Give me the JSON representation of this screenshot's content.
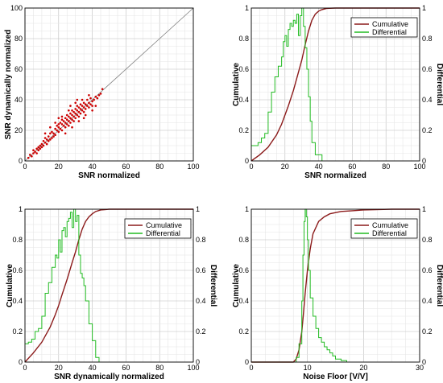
{
  "chart_data": [
    {
      "type": "scatter",
      "xlabel": "SNR normalized",
      "ylabel": "SNR dynamically normalized",
      "xlim": [
        0,
        100
      ],
      "ylim": [
        0,
        100
      ],
      "xticks": [
        "0",
        "20",
        "40",
        "60",
        "80",
        "100"
      ],
      "yticks": [
        "0",
        "20",
        "40",
        "60",
        "80",
        "100"
      ],
      "grid": true,
      "reference_line": {
        "x": [
          0,
          100
        ],
        "y": [
          0,
          100
        ],
        "color": "#808080"
      },
      "series": [
        {
          "color": "#cc0000",
          "points": [
            [
              2,
              2
            ],
            [
              3,
              4
            ],
            [
              4,
              3
            ],
            [
              5,
              5
            ],
            [
              5,
              7
            ],
            [
              6,
              6
            ],
            [
              7,
              8
            ],
            [
              7,
              5
            ],
            [
              8,
              9
            ],
            [
              8,
              7
            ],
            [
              9,
              10
            ],
            [
              9,
              8
            ],
            [
              10,
              11
            ],
            [
              10,
              9
            ],
            [
              11,
              13
            ],
            [
              11,
              10
            ],
            [
              12,
              12
            ],
            [
              12,
              15
            ],
            [
              13,
              14
            ],
            [
              13,
              11
            ],
            [
              14,
              16
            ],
            [
              14,
              13
            ],
            [
              15,
              18
            ],
            [
              15,
              14
            ],
            [
              16,
              15
            ],
            [
              16,
              19
            ],
            [
              17,
              18
            ],
            [
              17,
              16
            ],
            [
              18,
              21
            ],
            [
              18,
              17
            ],
            [
              19,
              20
            ],
            [
              19,
              23
            ],
            [
              20,
              19
            ],
            [
              20,
              24
            ],
            [
              20,
              22
            ],
            [
              21,
              21
            ],
            [
              21,
              25
            ],
            [
              22,
              24
            ],
            [
              22,
              20
            ],
            [
              22,
              27
            ],
            [
              23,
              23
            ],
            [
              23,
              26
            ],
            [
              24,
              25
            ],
            [
              24,
              22
            ],
            [
              24,
              28
            ],
            [
              25,
              27
            ],
            [
              25,
              24
            ],
            [
              25,
              30
            ],
            [
              26,
              26
            ],
            [
              26,
              29
            ],
            [
              26,
              23
            ],
            [
              27,
              28
            ],
            [
              27,
              31
            ],
            [
              27,
              25
            ],
            [
              28,
              30
            ],
            [
              28,
              27
            ],
            [
              28,
              33
            ],
            [
              29,
              29
            ],
            [
              29,
              32
            ],
            [
              29,
              26
            ],
            [
              30,
              31
            ],
            [
              30,
              28
            ],
            [
              30,
              34
            ],
            [
              31,
              30
            ],
            [
              31,
              33
            ],
            [
              31,
              36
            ],
            [
              32,
              32
            ],
            [
              32,
              29
            ],
            [
              32,
              35
            ],
            [
              33,
              34
            ],
            [
              33,
              31
            ],
            [
              33,
              37
            ],
            [
              34,
              33
            ],
            [
              34,
              36
            ],
            [
              35,
              35
            ],
            [
              35,
              38
            ],
            [
              35,
              32
            ],
            [
              36,
              37
            ],
            [
              36,
              34
            ],
            [
              37,
              36
            ],
            [
              37,
              40
            ],
            [
              38,
              38
            ],
            [
              38,
              35
            ],
            [
              39,
              37
            ],
            [
              39,
              41
            ],
            [
              40,
              39
            ],
            [
              40,
              36
            ],
            [
              41,
              40
            ],
            [
              42,
              42
            ],
            [
              43,
              41
            ],
            [
              44,
              43
            ],
            [
              45,
              44
            ],
            [
              46,
              47
            ],
            [
              38,
              43
            ],
            [
              34,
              40
            ],
            [
              30,
              38
            ],
            [
              26,
              33
            ],
            [
              22,
              29
            ],
            [
              18,
              25
            ],
            [
              24,
              18
            ],
            [
              28,
              22
            ],
            [
              32,
              26
            ],
            [
              36,
              30
            ],
            [
              40,
              33
            ],
            [
              15,
              22
            ],
            [
              12,
              18
            ],
            [
              20,
              28
            ],
            [
              35,
              28
            ],
            [
              42,
              36
            ],
            [
              27,
              36
            ],
            [
              31,
              40
            ]
          ]
        }
      ]
    },
    {
      "type": "line",
      "xlabel": "SNR normalized",
      "ylabel": "Cumulative",
      "y2label": "Differential",
      "xlim": [
        0,
        100
      ],
      "ylim": [
        0,
        1
      ],
      "y2lim": [
        0,
        1
      ],
      "xticks": [
        "0",
        "20",
        "40",
        "60",
        "80",
        "100"
      ],
      "yticks": [
        "0",
        "0.2",
        "0.4",
        "0.6",
        "0.8",
        "1"
      ],
      "y2ticks": [
        "0",
        "0.2",
        "0.4",
        "0.6",
        "0.8",
        "1"
      ],
      "grid": true,
      "legend": "top-right",
      "series": [
        {
          "name": "Cumulative",
          "color": "#8b1a1a",
          "step": false,
          "x": [
            0,
            5,
            10,
            15,
            18,
            20,
            22,
            25,
            28,
            30,
            32,
            34,
            36,
            38,
            40,
            42,
            45,
            50,
            60,
            100
          ],
          "y": [
            0,
            0.04,
            0.09,
            0.17,
            0.24,
            0.3,
            0.36,
            0.46,
            0.58,
            0.66,
            0.76,
            0.85,
            0.92,
            0.96,
            0.98,
            0.99,
            0.998,
            1,
            1,
            1
          ]
        },
        {
          "name": "Differential",
          "color": "#22bb22",
          "step": true,
          "x": [
            0,
            2,
            4,
            6,
            8,
            10,
            12,
            14,
            16,
            18,
            19,
            20,
            21,
            22,
            23,
            24,
            25,
            26,
            27,
            28,
            29,
            30,
            31,
            32,
            33,
            34,
            35,
            36,
            38,
            40,
            42
          ],
          "y": [
            0.1,
            0.1,
            0.12,
            0.15,
            0.18,
            0.32,
            0.45,
            0.55,
            0.62,
            0.68,
            0.78,
            0.82,
            0.75,
            0.86,
            0.9,
            0.88,
            0.92,
            0.9,
            0.96,
            0.82,
            0.95,
            1,
            0.88,
            0.74,
            0.6,
            0.42,
            0.26,
            0.12,
            0.04,
            0.04,
            0
          ]
        }
      ]
    },
    {
      "type": "line",
      "xlabel": "SNR dynamically normalized",
      "ylabel": "Cumulative",
      "y2label": "Differential",
      "xlim": [
        0,
        100
      ],
      "ylim": [
        0,
        1
      ],
      "y2lim": [
        0,
        1
      ],
      "xticks": [
        "0",
        "20",
        "40",
        "60",
        "80",
        "100"
      ],
      "yticks": [
        "0",
        "0.2",
        "0.4",
        "0.6",
        "0.8",
        "1"
      ],
      "y2ticks": [
        "0",
        "0.2",
        "0.4",
        "0.6",
        "0.8",
        "1"
      ],
      "grid": true,
      "legend": "top-right",
      "series": [
        {
          "name": "Cumulative",
          "color": "#8b1a1a",
          "step": false,
          "x": [
            0,
            5,
            10,
            15,
            18,
            20,
            22,
            25,
            28,
            30,
            32,
            34,
            36,
            38,
            40,
            42,
            45,
            50,
            60,
            100
          ],
          "y": [
            0,
            0.06,
            0.13,
            0.23,
            0.31,
            0.37,
            0.44,
            0.54,
            0.65,
            0.72,
            0.8,
            0.87,
            0.92,
            0.95,
            0.97,
            0.985,
            0.995,
            1,
            1,
            1
          ]
        },
        {
          "name": "Differential",
          "color": "#22bb22",
          "step": true,
          "x": [
            0,
            2,
            4,
            6,
            8,
            10,
            12,
            14,
            16,
            18,
            19,
            20,
            21,
            22,
            23,
            24,
            25,
            26,
            27,
            28,
            29,
            30,
            31,
            32,
            33,
            34,
            35,
            36,
            38,
            40,
            42,
            44
          ],
          "y": [
            0.12,
            0.13,
            0.15,
            0.2,
            0.22,
            0.3,
            0.45,
            0.52,
            0.62,
            0.7,
            0.68,
            0.8,
            0.72,
            0.86,
            0.88,
            0.82,
            0.92,
            0.94,
            0.98,
            0.88,
            1,
            0.92,
            0.96,
            0.7,
            0.58,
            0.55,
            0.5,
            0.4,
            0.25,
            0.14,
            0.03,
            0
          ]
        }
      ]
    },
    {
      "type": "line",
      "xlabel": "Noise Floor [V/V]",
      "ylabel": "Cumulative",
      "y2label": "Differential",
      "xlim": [
        0,
        30
      ],
      "ylim": [
        0,
        1
      ],
      "y2lim": [
        0,
        1
      ],
      "xticks": [
        "0",
        "10",
        "20",
        "30"
      ],
      "yticks": [
        "0",
        "0.2",
        "0.4",
        "0.6",
        "0.8",
        "1"
      ],
      "y2ticks": [
        "0",
        "0.2",
        "0.4",
        "0.6",
        "0.8",
        "1"
      ],
      "grid": true,
      "legend": "top-right",
      "series": [
        {
          "name": "Cumulative",
          "color": "#8b1a1a",
          "step": false,
          "x": [
            0,
            7.5,
            8,
            8.5,
            9,
            9.3,
            9.6,
            10,
            10.5,
            11,
            12,
            13,
            14,
            16,
            18,
            20,
            25,
            30
          ],
          "y": [
            0,
            0,
            0.02,
            0.08,
            0.2,
            0.32,
            0.45,
            0.6,
            0.74,
            0.84,
            0.92,
            0.95,
            0.97,
            0.985,
            0.99,
            0.995,
            1,
            1
          ]
        },
        {
          "name": "Differential",
          "color": "#22bb22",
          "step": true,
          "x": [
            0,
            7.5,
            8,
            8.5,
            9,
            9.2,
            9.4,
            9.6,
            9.8,
            10,
            10.2,
            10.5,
            11,
            11.5,
            12,
            12.5,
            13,
            13.5,
            14,
            14.5,
            15,
            16,
            17
          ],
          "y": [
            0,
            0,
            0.03,
            0.12,
            0.4,
            0.7,
            0.92,
            1,
            0.95,
            0.8,
            0.6,
            0.42,
            0.3,
            0.22,
            0.16,
            0.13,
            0.1,
            0.08,
            0.06,
            0.04,
            0.02,
            0.01,
            0
          ]
        }
      ]
    }
  ]
}
